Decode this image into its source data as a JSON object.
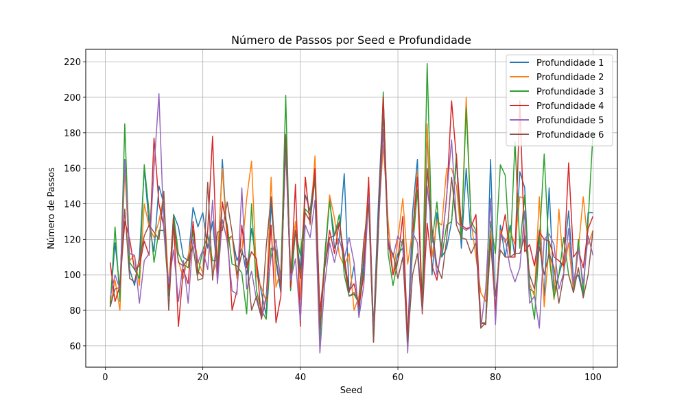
{
  "chart_data": {
    "type": "line",
    "title": "Número de Passos por Seed e Profundidade",
    "xlabel": "Seed",
    "ylabel": "Número de Passos",
    "xlim": [
      -4,
      105
    ],
    "ylim": [
      48,
      227
    ],
    "xticks": [
      0,
      20,
      40,
      60,
      80,
      100
    ],
    "yticks": [
      60,
      80,
      100,
      120,
      140,
      160,
      180,
      200,
      220
    ],
    "grid": true,
    "legend_position": "top-right",
    "x": [
      1,
      2,
      3,
      4,
      5,
      6,
      7,
      8,
      9,
      10,
      11,
      12,
      13,
      14,
      15,
      16,
      17,
      18,
      19,
      20,
      21,
      22,
      23,
      24,
      25,
      26,
      27,
      28,
      29,
      30,
      31,
      32,
      33,
      34,
      35,
      36,
      37,
      38,
      39,
      40,
      41,
      42,
      43,
      44,
      45,
      46,
      47,
      48,
      49,
      50,
      51,
      52,
      53,
      54,
      55,
      56,
      57,
      58,
      59,
      60,
      61,
      62,
      63,
      64,
      65,
      66,
      67,
      68,
      69,
      70,
      71,
      72,
      73,
      74,
      75,
      76,
      77,
      78,
      79,
      80,
      81,
      82,
      83,
      84,
      85,
      86,
      87,
      88,
      89,
      90,
      91,
      92,
      93,
      94,
      95,
      96,
      97,
      98,
      99,
      100
    ],
    "series": [
      {
        "name": "Profundidade 1",
        "color": "#1f77b4",
        "values": [
          84,
          118,
          92,
          165,
          103,
          94,
          110,
          160,
          128,
          113,
          150,
          140,
          88,
          134,
          127,
          110,
          108,
          138,
          127,
          135,
          115,
          130,
          100,
          165,
          120,
          122,
          108,
          115,
          100,
          126,
          107,
          90,
          77,
          140,
          107,
          90,
          176,
          93,
          125,
          103,
          145,
          136,
          160,
          78,
          107,
          143,
          115,
          121,
          157,
          90,
          105,
          78,
          110,
          150,
          70,
          140,
          200,
          120,
          100,
          112,
          115,
          65,
          135,
          165,
          80,
          182,
          100,
          135,
          110,
          115,
          130,
          165,
          115,
          160,
          120,
          120,
          73,
          72,
          165,
          75,
          128,
          110,
          128,
          110,
          158,
          149,
          92,
          90,
          125,
          88,
          149,
          90,
          100,
          110,
          136,
          97,
          100,
          88,
          135,
          135
        ]
      },
      {
        "name": "Profundidade 2",
        "color": "#ff7f0e",
        "values": [
          82,
          97,
          80,
          160,
          108,
          111,
          94,
          140,
          127,
          121,
          130,
          145,
          93,
          125,
          108,
          98,
          111,
          124,
          108,
          101,
          123,
          101,
          108,
          160,
          118,
          122,
          98,
          113,
          143,
          164,
          100,
          93,
          85,
          155,
          93,
          103,
          178,
          103,
          130,
          86,
          155,
          128,
          167,
          75,
          110,
          145,
          132,
          111,
          105,
          112,
          80,
          88,
          115,
          150,
          67,
          130,
          173,
          130,
          100,
          120,
          143,
          106,
          125,
          158,
          85,
          185,
          110,
          130,
          128,
          160,
          160,
          150,
          120,
          200,
          130,
          110,
          90,
          85,
          125,
          78,
          125,
          118,
          125,
          117,
          144,
          143,
          95,
          88,
          144,
          82,
          117,
          86,
          137,
          102,
          118,
          90,
          114,
          144,
          117,
          125
        ]
      },
      {
        "name": "Profundidade 3",
        "color": "#2ca02c",
        "values": [
          82,
          127,
          85,
          185,
          107,
          103,
          98,
          162,
          135,
          107,
          125,
          125,
          90,
          134,
          112,
          106,
          104,
          125,
          100,
          114,
          122,
          108,
          108,
          140,
          128,
          106,
          105,
          101,
          78,
          140,
          91,
          80,
          75,
          115,
          114,
          98,
          201,
          91,
          125,
          111,
          137,
          134,
          158,
          63,
          112,
          141,
          122,
          134,
          100,
          88,
          89,
          84,
          103,
          145,
          62,
          123,
          203,
          112,
          94,
          108,
          120,
          65,
          114,
          148,
          85,
          219,
          118,
          141,
          110,
          128,
          130,
          168,
          120,
          194,
          130,
          125,
          73,
          73,
          130,
          112,
          162,
          156,
          110,
          175,
          115,
          145,
          93,
          75,
          118,
          168,
          110,
          87,
          100,
          121,
          100,
          90,
          120,
          90,
          130,
          180
        ]
      },
      {
        "name": "Profundidade 4",
        "color": "#d62728",
        "values": [
          107,
          85,
          94,
          130,
          120,
          103,
          105,
          119,
          111,
          177,
          140,
          127,
          92,
          132,
          71,
          103,
          95,
          130,
          102,
          99,
          125,
          178,
          97,
          141,
          126,
          80,
          91,
          128,
          104,
          113,
          109,
          75,
          87,
          128,
          73,
          88,
          176,
          93,
          151,
          71,
          155,
          129,
          160,
          79,
          104,
          125,
          112,
          130,
          110,
          91,
          95,
          82,
          100,
          155,
          66,
          130,
          200,
          121,
          100,
          108,
          133,
          64,
          122,
          155,
          78,
          129,
          105,
          97,
          118,
          143,
          198,
          165,
          128,
          126,
          127,
          134,
          73,
          72,
          120,
          80,
          120,
          134,
          110,
          110,
          198,
          113,
          117,
          105,
          124,
          120,
          119,
          110,
          108,
          105,
          163,
          110,
          114,
          104,
          126,
          133
        ]
      },
      {
        "name": "Profundidade 5",
        "color": "#9467bd",
        "values": [
          87,
          100,
          92,
          164,
          112,
          111,
          84,
          108,
          112,
          160,
          202,
          125,
          95,
          114,
          85,
          108,
          84,
          120,
          107,
          114,
          103,
          142,
          95,
          131,
          119,
          91,
          89,
          149,
          92,
          102,
          86,
          76,
          88,
          110,
          120,
          96,
          170,
          97,
          109,
          74,
          128,
          121,
          142,
          56,
          95,
          118,
          107,
          120,
          109,
          121,
          107,
          76,
          94,
          144,
          66,
          125,
          182,
          120,
          110,
          122,
          117,
          56,
          124,
          118,
          79,
          150,
          125,
          100,
          114,
          145,
          176,
          130,
          127,
          125,
          127,
          123,
          70,
          92,
          143,
          72,
          123,
          120,
          104,
          96,
          104,
          136,
          84,
          88,
          70,
          120,
          123,
          117,
          92,
          101,
          126,
          94,
          115,
          95,
          122,
          111
        ]
      },
      {
        "name": "Profundidade 6",
        "color": "#8c564b",
        "values": [
          82,
          92,
          93,
          137,
          98,
          96,
          109,
          122,
          128,
          124,
          120,
          147,
          80,
          130,
          107,
          105,
          109,
          116,
          97,
          98,
          152,
          97,
          124,
          125,
          141,
          124,
          100,
          112,
          109,
          80,
          88,
          76,
          116,
          144,
          109,
          93,
          179,
          101,
          125,
          98,
          135,
          130,
          154,
          70,
          104,
          121,
          122,
          130,
          106,
          88,
          90,
          85,
          119,
          140,
          62,
          128,
          192,
          115,
          112,
          98,
          110,
          62,
          100,
          112,
          80,
          160,
          126,
          105,
          98,
          120,
          155,
          128,
          121,
          120,
          112,
          118,
          70,
          73,
          118,
          88,
          114,
          110,
          110,
          112,
          112,
          122,
          100,
          92,
          116,
          100,
          112,
          104,
          84,
          100,
          100,
          90,
          104,
          87,
          100,
          125
        ]
      }
    ]
  }
}
